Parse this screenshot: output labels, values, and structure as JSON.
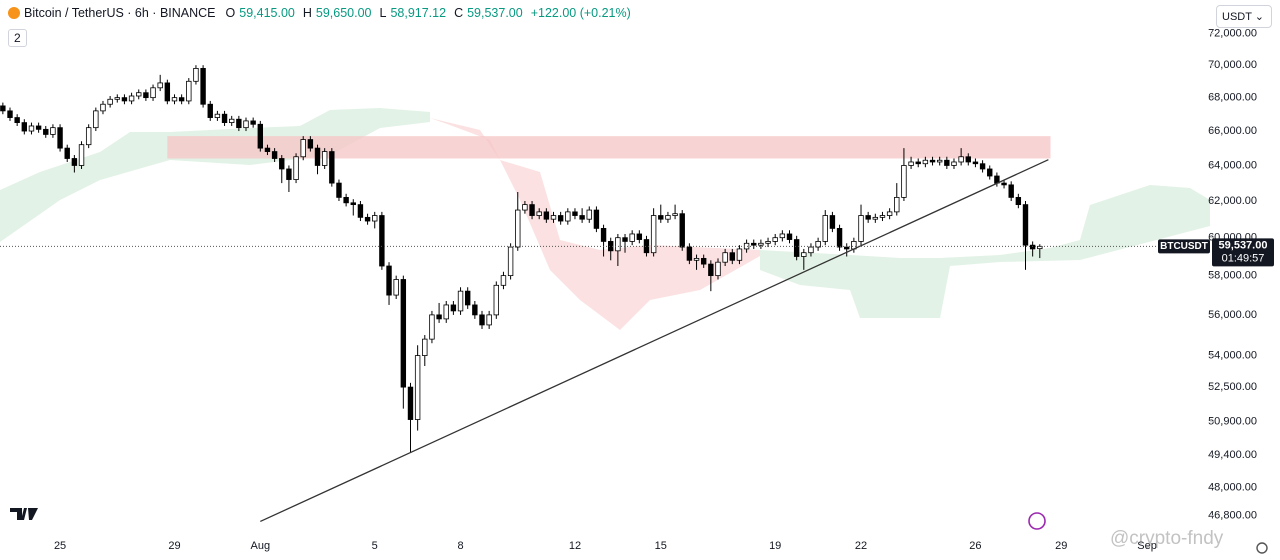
{
  "header": {
    "symbol": "Bitcoin / TetherUS · 6h · BINANCE",
    "ohlc": [
      {
        "key": "O",
        "value": "59,415.00"
      },
      {
        "key": "H",
        "value": "59,650.00"
      },
      {
        "key": "L",
        "value": "58,917.12"
      },
      {
        "key": "C",
        "value": "59,537.00"
      }
    ],
    "change": "+122.00 (+0.21%)",
    "indicators": "2",
    "currency": "USDT"
  },
  "chart_data": {
    "type": "candlestick",
    "up_color": "#ffffff",
    "down_color": "#000000",
    "outline_color": "#000000",
    "log_scale": true,
    "grid": false,
    "ylim": [
      46000,
      74200
    ],
    "yticks": [
      {
        "value": 72000,
        "label": "72,000.00"
      },
      {
        "value": 70000,
        "label": "70,000.00"
      },
      {
        "value": 68000,
        "label": "68,000.00"
      },
      {
        "value": 66000,
        "label": "66,000.00"
      },
      {
        "value": 64000,
        "label": "64,000.00"
      },
      {
        "value": 62000,
        "label": "62,000.00"
      },
      {
        "value": 60000,
        "label": "60,000.00"
      },
      {
        "value": 58000,
        "label": "58,000.00"
      },
      {
        "value": 56000,
        "label": "56,000.00"
      },
      {
        "value": 54000,
        "label": "54,000.00"
      },
      {
        "value": 52500,
        "label": "52,500.00"
      },
      {
        "value": 50900,
        "label": "50,900.00"
      },
      {
        "value": 49400,
        "label": "49,400.00"
      },
      {
        "value": 48000,
        "label": "48,000.00"
      },
      {
        "value": 46800,
        "label": "46,800.00"
      }
    ],
    "xlim": [
      -8.4,
      160.8
    ],
    "xticks": [
      {
        "value": 0,
        "label": "25"
      },
      {
        "value": 16,
        "label": "29"
      },
      {
        "value": 28,
        "label": "Aug"
      },
      {
        "value": 44,
        "label": "5"
      },
      {
        "value": 56,
        "label": "8"
      },
      {
        "value": 72,
        "label": "12"
      },
      {
        "value": 84,
        "label": "15"
      },
      {
        "value": 100,
        "label": "19"
      },
      {
        "value": 112,
        "label": "22"
      },
      {
        "value": 128,
        "label": "26"
      },
      {
        "value": 140,
        "label": "29"
      },
      {
        "value": 152,
        "label": "Sep"
      }
    ],
    "x_start": -8,
    "open": [
      67500,
      67200,
      66800,
      66500,
      66000,
      66300,
      66100,
      65800,
      66200,
      65000,
      64400,
      64000,
      65200,
      66200,
      67200,
      67600,
      67900,
      68000,
      67800,
      68100,
      68300,
      68000,
      68600,
      68900,
      67800,
      68000,
      67800,
      69000,
      69800,
      67600,
      66800,
      67000,
      66500,
      66700,
      66200,
      66600,
      66400,
      65000,
      64800,
      64400,
      63800,
      63200,
      64500,
      65500,
      65000,
      64000,
      64800,
      63000,
      62200,
      61900,
      61800,
      61100,
      60900,
      61200,
      58500,
      57000,
      57800,
      52500,
      51000,
      54000,
      54800,
      56000,
      55800,
      56500,
      56200,
      57200,
      56500,
      56000,
      55500,
      56000,
      57500,
      58000,
      59500,
      61500,
      61800,
      61200,
      61400,
      61000,
      61200,
      60900,
      61400,
      61200,
      61000,
      61500,
      60500,
      59800,
      59300,
      60000,
      59800,
      60200,
      59900,
      59200,
      61200,
      61000,
      61200,
      61300,
      59500,
      58800,
      58900,
      58600,
      58000,
      58700,
      59200,
      58800,
      59400,
      59700,
      59600,
      59700,
      59800,
      60000,
      60200,
      59900,
      59000,
      59200,
      59500,
      59800,
      61200,
      60500,
      59500,
      59400,
      59800,
      61200,
      61000,
      61100,
      61200,
      61400,
      62200,
      64000,
      64200,
      64100,
      64300,
      64200,
      64300,
      64000,
      64200,
      64500,
      64200,
      64100,
      63800,
      63400,
      63000,
      62900,
      62200,
      61800,
      59600,
      59415
    ],
    "high": [
      67700,
      67400,
      67000,
      66700,
      66500,
      66500,
      66300,
      66400,
      66400,
      65200,
      64600,
      65400,
      66400,
      67400,
      67800,
      68100,
      68200,
      68200,
      68300,
      68500,
      68500,
      68800,
      69400,
      69100,
      68200,
      68200,
      69200,
      70000,
      70000,
      67800,
      67200,
      67200,
      66900,
      66900,
      66800,
      66800,
      66600,
      65200,
      65000,
      64600,
      64000,
      64700,
      65700,
      65700,
      65200,
      65000,
      65000,
      63200,
      62400,
      62100,
      62000,
      61300,
      61400,
      61400,
      58700,
      58000,
      58000,
      52700,
      54500,
      55000,
      56200,
      56600,
      56700,
      56700,
      57400,
      57400,
      56700,
      56200,
      56200,
      57700,
      58200,
      59700,
      62500,
      62000,
      62000,
      61600,
      61600,
      61400,
      61400,
      61600,
      61600,
      61600,
      61700,
      61700,
      60700,
      60000,
      60200,
      60200,
      60400,
      60400,
      60100,
      61600,
      61800,
      61400,
      61800,
      61500,
      59700,
      59100,
      59100,
      58800,
      58900,
      59400,
      59400,
      59600,
      59900,
      59900,
      59900,
      60000,
      60200,
      60400,
      60400,
      60100,
      59400,
      59700,
      60000,
      61500,
      61400,
      60700,
      59700,
      60000,
      61800,
      61400,
      61300,
      61400,
      61600,
      63000,
      65000,
      64500,
      64400,
      64500,
      64500,
      64500,
      64500,
      64400,
      65000,
      64700,
      64400,
      64300,
      64000,
      63600,
      63200,
      63100,
      62400,
      62000,
      59800,
      59650
    ],
    "low": [
      67000,
      66600,
      66300,
      65800,
      65800,
      65900,
      65600,
      65600,
      64800,
      64200,
      63600,
      63800,
      65000,
      66000,
      67000,
      67400,
      67700,
      67600,
      67600,
      67900,
      67800,
      67800,
      68400,
      67600,
      67600,
      67600,
      67600,
      68800,
      67400,
      66600,
      66600,
      66300,
      66300,
      66000,
      66000,
      66200,
      64800,
      64600,
      64200,
      63000,
      62500,
      63000,
      64300,
      64800,
      63500,
      63800,
      62800,
      62000,
      61700,
      61200,
      60900,
      60700,
      60500,
      58300,
      56500,
      56800,
      51500,
      49500,
      50500,
      53500,
      54600,
      55600,
      55600,
      56000,
      56000,
      56300,
      55800,
      55300,
      55300,
      55800,
      57300,
      57800,
      59300,
      61300,
      61000,
      61000,
      60800,
      60800,
      60700,
      60700,
      61000,
      60800,
      60800,
      60300,
      59000,
      58800,
      58500,
      59200,
      59600,
      59700,
      59000,
      59000,
      60800,
      60800,
      61000,
      59300,
      58600,
      58300,
      58400,
      57200,
      57800,
      58500,
      58600,
      58600,
      59200,
      59400,
      59400,
      59500,
      59600,
      59800,
      59700,
      58800,
      58300,
      59000,
      59300,
      59600,
      60300,
      59300,
      59000,
      59200,
      59600,
      60800,
      60800,
      60900,
      61000,
      61200,
      62000,
      63800,
      63900,
      63900,
      64000,
      64000,
      63800,
      63800,
      64000,
      64000,
      63900,
      63600,
      63200,
      62800,
      62700,
      62000,
      61600,
      58300,
      59000,
      58917.12
    ],
    "close": [
      67200,
      66800,
      66500,
      66000,
      66300,
      66100,
      65800,
      66200,
      65000,
      64400,
      64000,
      65200,
      66200,
      67200,
      67600,
      67900,
      68000,
      67800,
      68100,
      68300,
      68000,
      68600,
      68900,
      67800,
      68000,
      67800,
      69000,
      69800,
      67600,
      66800,
      67000,
      66500,
      66700,
      66200,
      66600,
      66400,
      65000,
      64800,
      64400,
      63800,
      63200,
      64500,
      65500,
      65000,
      64000,
      64800,
      63000,
      62200,
      61900,
      61800,
      61100,
      60900,
      61200,
      58500,
      57000,
      57800,
      52500,
      51000,
      54000,
      54800,
      56000,
      55800,
      56500,
      56200,
      57200,
      56500,
      56000,
      55500,
      56000,
      57500,
      58000,
      59500,
      61500,
      61800,
      61200,
      61400,
      61000,
      61200,
      60900,
      61400,
      61200,
      61000,
      61500,
      60500,
      59800,
      59300,
      60000,
      59800,
      60200,
      59900,
      59200,
      61200,
      61000,
      61200,
      61300,
      59500,
      58800,
      58900,
      58600,
      58000,
      58700,
      59200,
      58800,
      59400,
      59700,
      59600,
      59700,
      59800,
      60000,
      60200,
      59900,
      59000,
      59200,
      59500,
      59800,
      61200,
      60500,
      59500,
      59400,
      59800,
      61200,
      61000,
      61100,
      61200,
      61400,
      62200,
      64000,
      64200,
      64100,
      64300,
      64200,
      64300,
      64000,
      64200,
      64500,
      64200,
      64100,
      63800,
      63400,
      63000,
      62900,
      62200,
      61800,
      59600,
      59400,
      59537
    ],
    "zone": {
      "x": [
        15,
        138.5
      ],
      "y": [
        64400,
        65700
      ],
      "color": "#f5c4c4"
    },
    "trendline": {
      "x": [
        28,
        138.2
      ],
      "y": [
        46560,
        64330
      ],
      "color": "#333333"
    },
    "price_label": "59,537.00",
    "countdown": "01:49:57",
    "symbol_tag": "BTCUSDT"
  },
  "watermark": "@crypto-fndy"
}
